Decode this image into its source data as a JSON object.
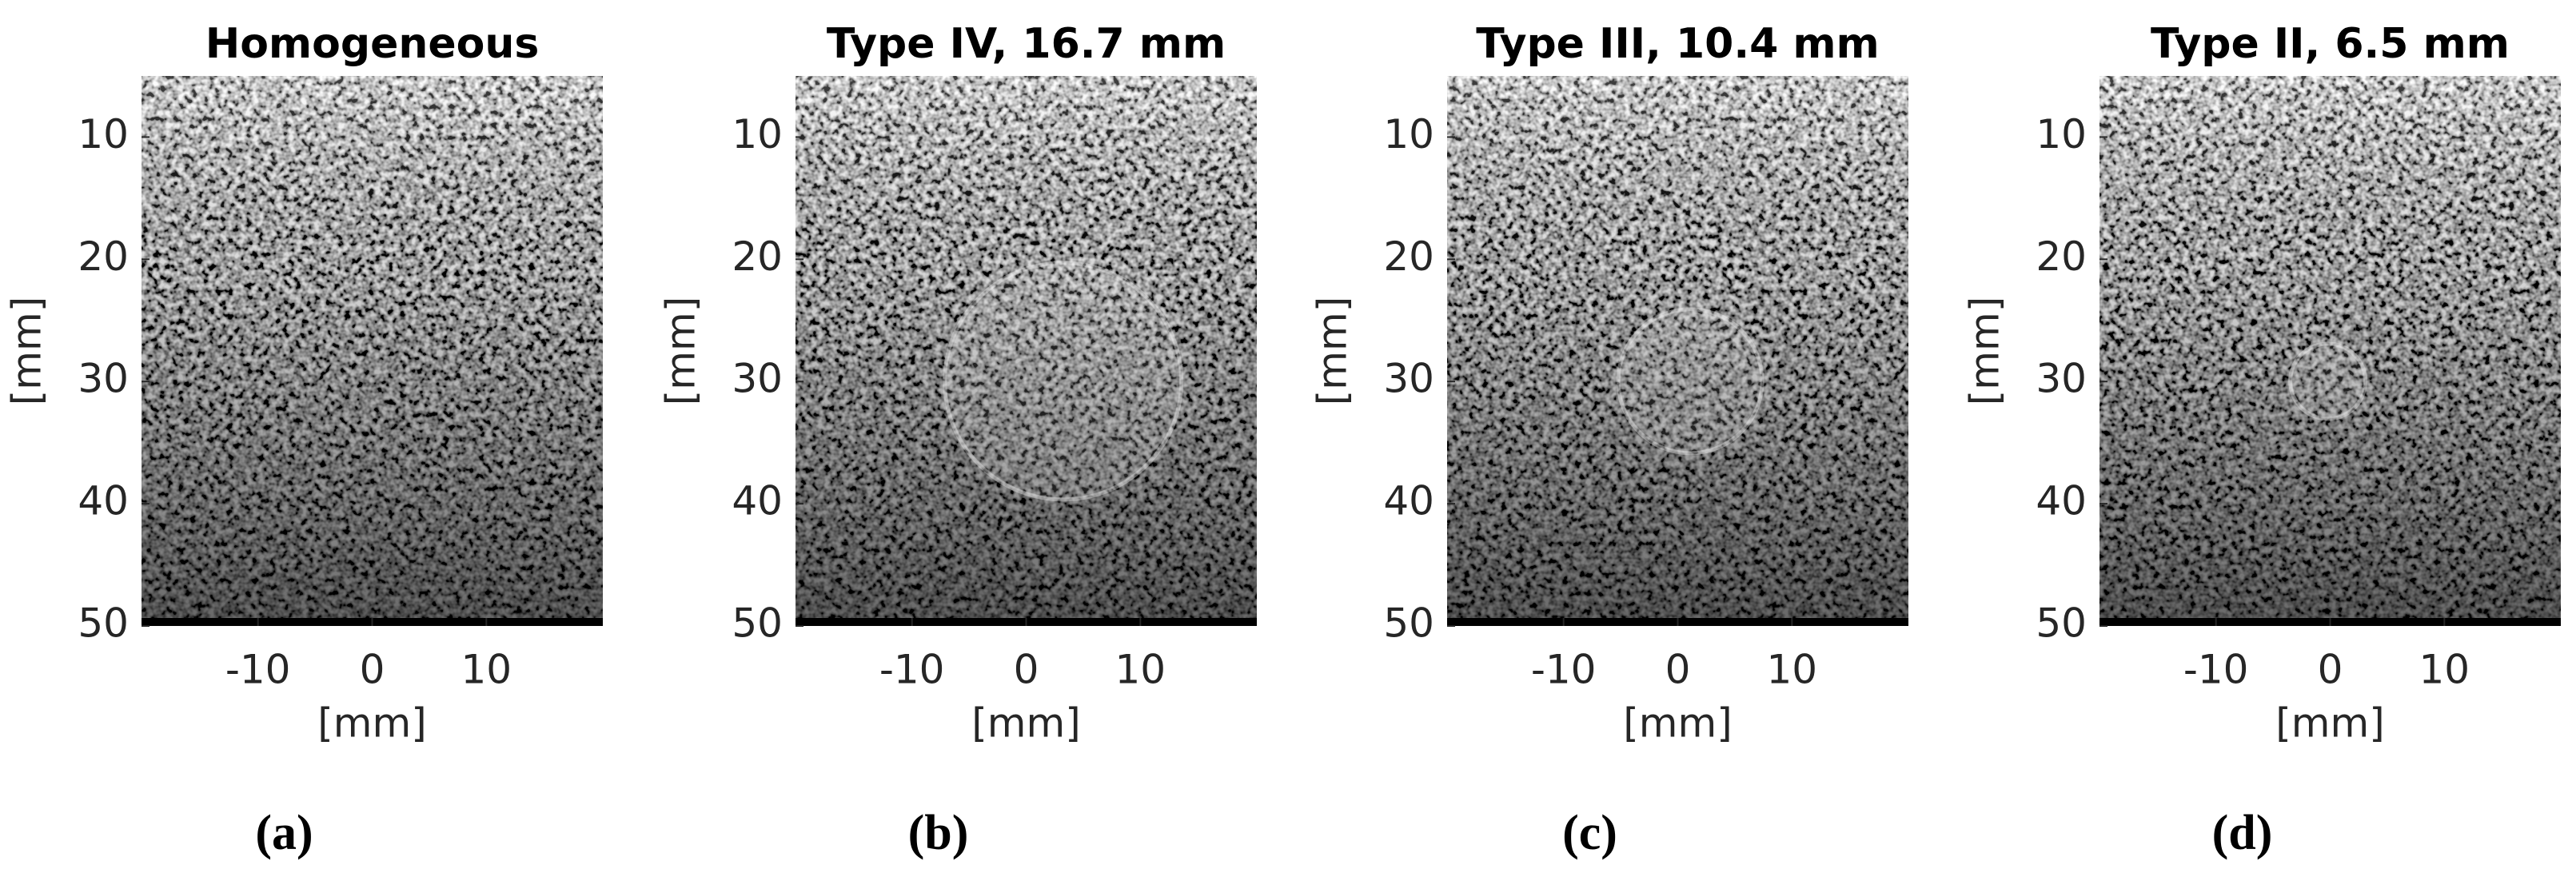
{
  "chart_data": [
    {
      "type": "image",
      "title": "Homogeneous",
      "xlabel": "[mm]",
      "ylabel": "[mm]",
      "xlim": [
        -20.2,
        20.2
      ],
      "ylim": [
        5,
        50
      ],
      "y_reversed": true,
      "xticks": [
        -10,
        0,
        10
      ],
      "yticks": [
        10,
        20,
        30,
        40,
        50
      ],
      "caption": "(a)"
    },
    {
      "type": "image",
      "title": "Type IV, 16.7 mm",
      "xlabel": "[mm]",
      "ylabel": "[mm]",
      "xlim": [
        -20.2,
        20.2
      ],
      "ylim": [
        5,
        50
      ],
      "y_reversed": true,
      "xticks": [
        -10,
        0,
        10
      ],
      "yticks": [
        10,
        20,
        30,
        40,
        50
      ],
      "caption": "(b)"
    },
    {
      "type": "image",
      "title": "Type III, 10.4 mm",
      "xlabel": "[mm]",
      "ylabel": "[mm]",
      "xlim": [
        -20.2,
        20.2
      ],
      "ylim": [
        5,
        50
      ],
      "y_reversed": true,
      "xticks": [
        -10,
        0,
        10
      ],
      "yticks": [
        10,
        20,
        30,
        40,
        50
      ],
      "caption": "(c)"
    },
    {
      "type": "image",
      "title": "Type II, 6.5 mm",
      "xlabel": "[mm]",
      "ylabel": "[mm]",
      "xlim": [
        -20.2,
        20.2
      ],
      "ylim": [
        5,
        50
      ],
      "y_reversed": true,
      "xticks": [
        -10,
        0,
        10
      ],
      "yticks": [
        10,
        20,
        30,
        40,
        50
      ],
      "caption": "(d)"
    }
  ]
}
